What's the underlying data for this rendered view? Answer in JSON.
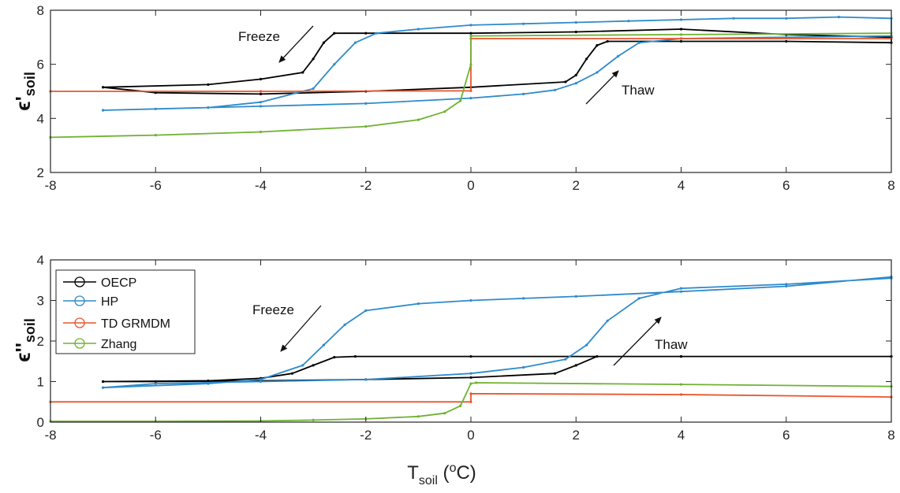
{
  "chart_data": [
    {
      "type": "line",
      "panel": "top",
      "ylabel": {
        "main": "ϵ'",
        "sub": "soil"
      },
      "xlim": [
        -8,
        8
      ],
      "ylim": [
        2,
        8
      ],
      "xticks": [
        -8,
        -6,
        -4,
        -2,
        0,
        2,
        4,
        6,
        8
      ],
      "yticks": [
        2,
        4,
        6,
        8
      ],
      "grid": false,
      "annotations": [
        {
          "text": "Freeze",
          "x": -3.4,
          "y": 7.0
        },
        {
          "text": "Thaw",
          "x": 3.2,
          "y": 4.4
        }
      ],
      "series": [
        {
          "name": "OECP",
          "color": "#000000",
          "x": [
            -7,
            -5,
            -4,
            -3.2,
            -3.0,
            -2.8,
            -2.6,
            -2.0,
            0,
            2,
            4,
            6,
            8,
            8,
            6,
            4,
            2.6,
            2.4,
            2.2,
            2.0,
            1.8,
            0,
            -2,
            -4,
            -6,
            -7
          ],
          "y": [
            5.15,
            5.25,
            5.45,
            5.7,
            6.2,
            6.8,
            7.15,
            7.15,
            7.15,
            7.2,
            7.3,
            7.1,
            7.0,
            6.8,
            6.85,
            6.85,
            6.85,
            6.7,
            6.2,
            5.6,
            5.35,
            5.15,
            5.0,
            4.9,
            4.95,
            5.15
          ]
        },
        {
          "name": "HP",
          "color": "#2E8BCB",
          "x": [
            -7,
            -5,
            -4,
            -3,
            -2.6,
            -2.2,
            -1.8,
            -1,
            0,
            1,
            2,
            3,
            4,
            5,
            6,
            7,
            8,
            8,
            6,
            4,
            3.2,
            2.8,
            2.4,
            2.0,
            1.6,
            1,
            0,
            -2,
            -4,
            -6,
            -7
          ],
          "y": [
            4.3,
            4.4,
            4.6,
            5.1,
            6.0,
            6.8,
            7.15,
            7.3,
            7.45,
            7.5,
            7.55,
            7.6,
            7.65,
            7.7,
            7.7,
            7.75,
            7.7,
            7.05,
            7.0,
            6.95,
            6.8,
            6.3,
            5.7,
            5.3,
            5.05,
            4.9,
            4.75,
            4.55,
            4.45,
            4.35,
            4.3
          ]
        },
        {
          "name": "TD GRMDM",
          "color": "#E8552D",
          "x": [
            -8,
            -4,
            0,
            0,
            4,
            8
          ],
          "y": [
            5.0,
            5.0,
            5.02,
            6.95,
            6.95,
            6.95
          ]
        },
        {
          "name": "Zhang",
          "color": "#6FB232",
          "x": [
            -8,
            -6,
            -4,
            -2,
            -1,
            -0.5,
            -0.2,
            0,
            0,
            4,
            8
          ],
          "y": [
            3.3,
            3.38,
            3.5,
            3.7,
            3.95,
            4.25,
            4.65,
            6.0,
            7.05,
            7.1,
            7.15
          ]
        }
      ]
    },
    {
      "type": "line",
      "panel": "bottom",
      "ylabel": {
        "main": "ϵ''",
        "sub": "soil"
      },
      "xlabel": {
        "main": "T",
        "sub": "soil",
        "rest": " (",
        "sup": "o",
        "unit": "C)"
      },
      "xlim": [
        -8,
        8
      ],
      "ylim": [
        0,
        4
      ],
      "xticks": [
        -8,
        -6,
        -4,
        -2,
        0,
        2,
        4,
        6,
        8
      ],
      "yticks": [
        0,
        1,
        2,
        3,
        4
      ],
      "grid": false,
      "legend": "top-left",
      "annotations": [
        {
          "text": "Freeze",
          "x": -3.1,
          "y": 2.9
        },
        {
          "text": "Thaw",
          "x": 3.8,
          "y": 1.5
        }
      ],
      "series": [
        {
          "name": "OECP",
          "color": "#000000",
          "x": [
            -7,
            -5,
            -4,
            -3.4,
            -3.0,
            -2.6,
            -2.2,
            0,
            4,
            8,
            8,
            4,
            2.4,
            2.0,
            1.6,
            0,
            -2,
            -4,
            -6,
            -7
          ],
          "y": [
            1.0,
            1.02,
            1.08,
            1.2,
            1.4,
            1.6,
            1.62,
            1.62,
            1.62,
            1.62,
            1.62,
            1.62,
            1.62,
            1.4,
            1.2,
            1.1,
            1.05,
            1.02,
            1.0,
            1.0
          ]
        },
        {
          "name": "HP",
          "color": "#2E8BCB",
          "x": [
            -7,
            -5,
            -4,
            -3.2,
            -2.8,
            -2.4,
            -2.0,
            -1,
            0,
            1,
            2,
            4,
            6,
            8,
            8,
            6,
            4,
            3.2,
            2.6,
            2.2,
            1.8,
            1,
            0,
            -2,
            -4,
            -6,
            -7
          ],
          "y": [
            0.85,
            0.95,
            1.05,
            1.4,
            1.9,
            2.4,
            2.75,
            2.92,
            3.0,
            3.05,
            3.1,
            3.22,
            3.35,
            3.58,
            3.55,
            3.4,
            3.3,
            3.05,
            2.5,
            1.9,
            1.55,
            1.35,
            1.2,
            1.05,
            1.0,
            0.95,
            0.85
          ]
        },
        {
          "name": "TD GRMDM",
          "color": "#E8552D",
          "x": [
            -8,
            0,
            0,
            4,
            8
          ],
          "y": [
            0.5,
            0.5,
            0.7,
            0.68,
            0.62
          ]
        },
        {
          "name": "Zhang",
          "color": "#6FB232",
          "x": [
            -8,
            -6,
            -4,
            -3,
            -2,
            -1,
            -0.5,
            -0.2,
            0,
            0.1,
            4,
            8
          ],
          "y": [
            0.02,
            0.02,
            0.03,
            0.05,
            0.08,
            0.14,
            0.22,
            0.4,
            0.95,
            0.97,
            0.93,
            0.88
          ]
        }
      ]
    }
  ],
  "legend": {
    "items": [
      {
        "label": "OECP",
        "color": "#000000"
      },
      {
        "label": "HP",
        "color": "#2E8BCB"
      },
      {
        "label": "TD GRMDM",
        "color": "#E8552D"
      },
      {
        "label": "Zhang",
        "color": "#6FB232"
      }
    ]
  }
}
